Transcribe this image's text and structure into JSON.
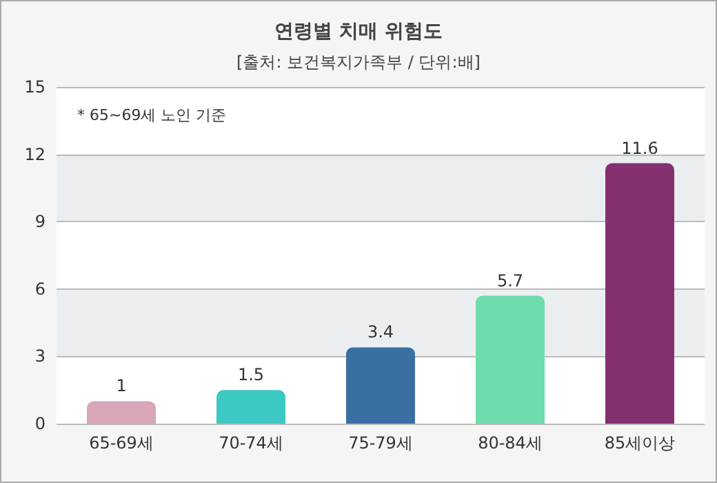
{
  "chart_data": {
    "type": "bar",
    "title": "연령별 치매 위험도",
    "subtitle": "[출처: 보건복지가족부 / 단위:배]",
    "annotations": [
      "* 65~69세 노인 기준"
    ],
    "categories": [
      "65-69세",
      "70-74세",
      "75-79세",
      "80-84세",
      "85세이상"
    ],
    "values": [
      1,
      1.5,
      3.4,
      5.7,
      11.6
    ],
    "colors": [
      "#d8a6b8",
      "#3cc9c3",
      "#3a6fa3",
      "#6fdcac",
      "#84306f"
    ],
    "ylim": [
      0,
      15
    ],
    "yticks": [
      0,
      3,
      6,
      9,
      12,
      15
    ],
    "grid": "y",
    "data_labels": true
  }
}
